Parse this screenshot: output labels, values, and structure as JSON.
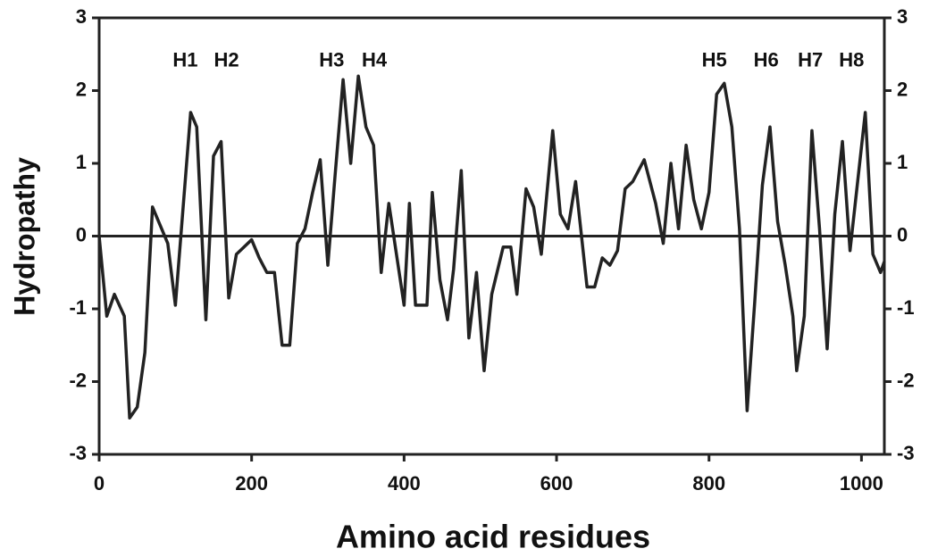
{
  "chart_data": {
    "type": "line",
    "xlabel": "Amino acid residues",
    "ylabel": "Hydropathy",
    "x": [
      0,
      10,
      20,
      33,
      40,
      50,
      60,
      70,
      80,
      90,
      100,
      120,
      128,
      140,
      150,
      160,
      170,
      180,
      190,
      200,
      210,
      220,
      230,
      240,
      250,
      260,
      270,
      280,
      290,
      300,
      310,
      320,
      330,
      340,
      350,
      360,
      370,
      380,
      390,
      400,
      407,
      415,
      430,
      437,
      447,
      457,
      465,
      475,
      485,
      495,
      505,
      515,
      530,
      540,
      548,
      560,
      570,
      580,
      595,
      605,
      615,
      625,
      640,
      650,
      660,
      670,
      680,
      690,
      700,
      715,
      730,
      740,
      750,
      760,
      770,
      780,
      790,
      800,
      810,
      820,
      830,
      840,
      850,
      860,
      870,
      880,
      890,
      900,
      910,
      915,
      925,
      935,
      945,
      955,
      965,
      975,
      985,
      995,
      1005,
      1015,
      1025,
      1030
    ],
    "series": [
      {
        "name": "Hydropathy",
        "color": "#222222",
        "values": [
          0,
          -1.1,
          -0.8,
          -1.1,
          -2.5,
          -2.35,
          -1.6,
          0.4,
          0.15,
          -0.1,
          -0.95,
          1.7,
          1.5,
          -1.15,
          1.1,
          1.3,
          -0.85,
          -0.25,
          -0.15,
          -0.05,
          -0.3,
          -0.5,
          -0.5,
          -1.5,
          -1.5,
          -0.1,
          0.1,
          0.6,
          1.05,
          -0.4,
          0.9,
          2.15,
          1.0,
          2.2,
          1.5,
          1.25,
          -0.5,
          0.45,
          -0.25,
          -0.95,
          0.45,
          -0.95,
          -0.95,
          0.6,
          -0.6,
          -1.15,
          -0.45,
          0.9,
          -1.4,
          -0.5,
          -1.85,
          -0.8,
          -0.15,
          -0.15,
          -0.8,
          0.65,
          0.4,
          -0.25,
          1.45,
          0.3,
          0.1,
          0.75,
          -0.7,
          -0.7,
          -0.3,
          -0.4,
          -0.2,
          0.65,
          0.75,
          1.05,
          0.45,
          -0.1,
          1.0,
          0.1,
          1.25,
          0.5,
          0.1,
          0.6,
          1.95,
          2.1,
          1.5,
          0.1,
          -2.4,
          -0.9,
          0.7,
          1.5,
          0.2,
          -0.4,
          -1.1,
          -1.85,
          -1.1,
          1.45,
          0.1,
          -1.55,
          0.3,
          1.3,
          -0.2,
          0.75,
          1.7,
          -0.25,
          -0.5,
          -0.35
        ]
      }
    ],
    "xlim": [
      0,
      1030
    ],
    "xticks": [
      0,
      200,
      400,
      600,
      800,
      1000
    ],
    "ylim": [
      -3,
      3
    ],
    "yticks": [
      -3,
      -2,
      -1,
      0,
      1,
      2,
      3
    ],
    "y2lim": [
      -3,
      3
    ],
    "y2ticks": [
      -3,
      -2,
      -1,
      0,
      1,
      2,
      3
    ],
    "zero_line": true,
    "annotations": [
      {
        "text": "H1",
        "x": 113,
        "y": 2.4
      },
      {
        "text": "H2",
        "x": 167,
        "y": 2.4
      },
      {
        "text": "H3",
        "x": 305,
        "y": 2.4
      },
      {
        "text": "H4",
        "x": 361,
        "y": 2.4
      },
      {
        "text": "H5",
        "x": 807,
        "y": 2.4
      },
      {
        "text": "H6",
        "x": 875,
        "y": 2.4
      },
      {
        "text": "H7",
        "x": 933,
        "y": 2.4
      },
      {
        "text": "H8",
        "x": 987,
        "y": 2.4
      }
    ]
  }
}
